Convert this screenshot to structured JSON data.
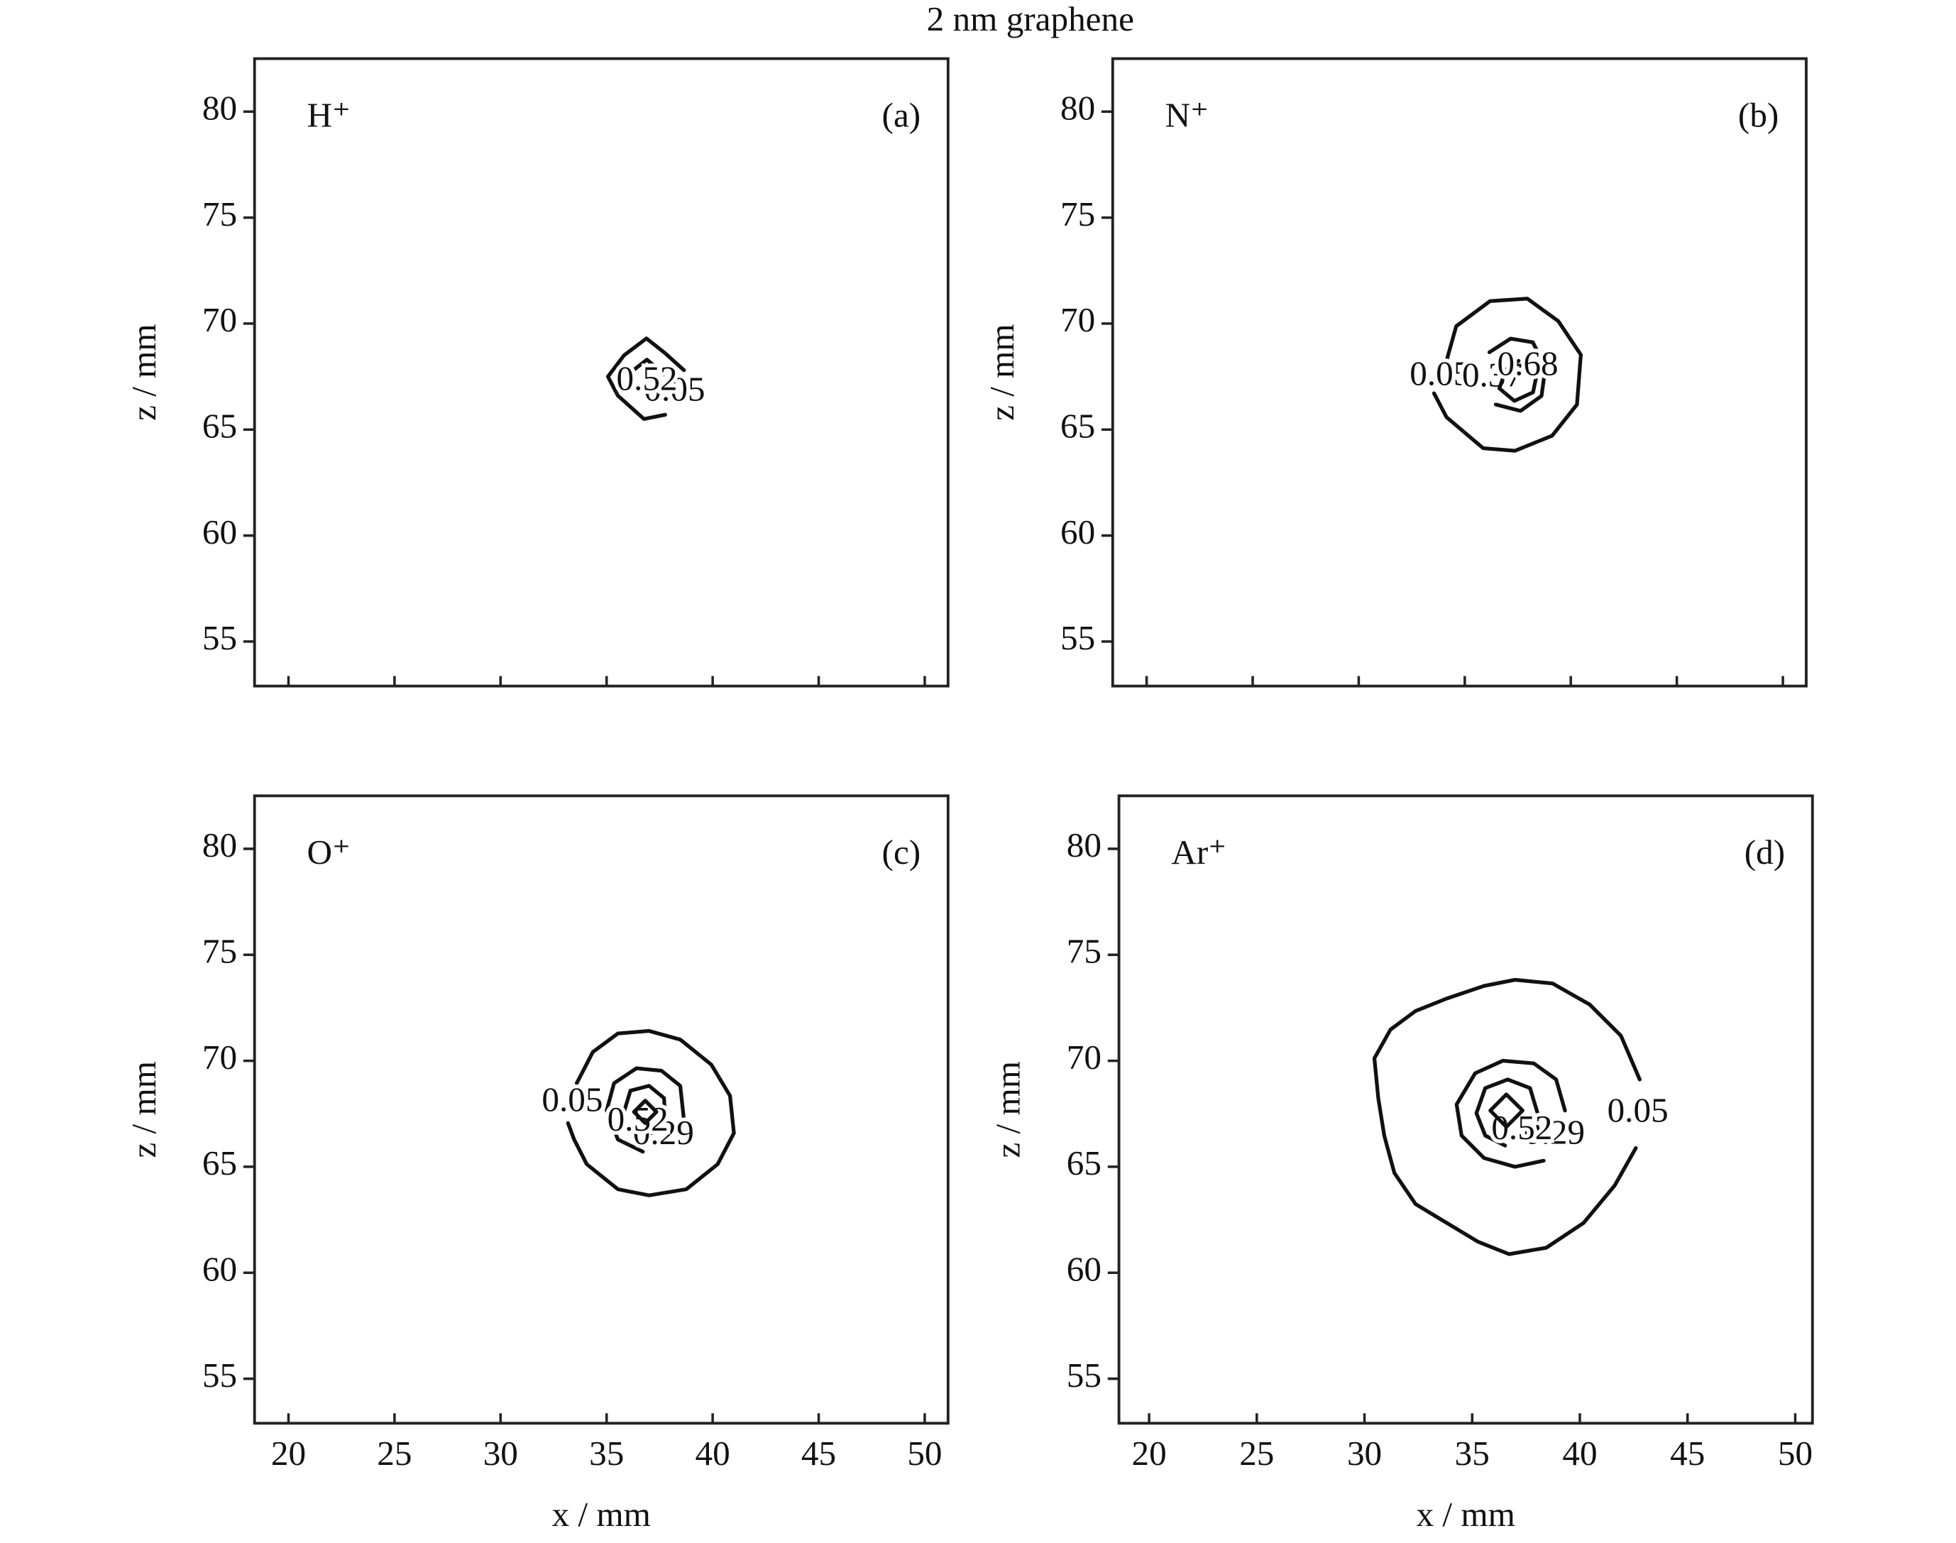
{
  "title": "2 nm graphene",
  "chart_data": [
    {
      "type": "contour",
      "ion": "H⁺",
      "panel": "(a)",
      "ylabel": "z / mm",
      "xlim": [
        18.4,
        51.1
      ],
      "ylim": [
        52.9,
        82.5
      ],
      "xticks": [
        20,
        25,
        30,
        35,
        40,
        45,
        50
      ],
      "yticks": [
        55,
        60,
        65,
        70,
        75,
        80
      ],
      "show_xticklabels": false,
      "contours": [
        {
          "level": 0.05,
          "x": [
            37.76,
            36.76,
            35.53,
            35.06,
            35.82,
            36.88,
            37.76,
            38.65
          ],
          "z": [
            65.7,
            65.5,
            66.6,
            67.5,
            68.5,
            69.3,
            68.6,
            67.8
          ]
        },
        {
          "level": 0.52,
          "x": [
            36.1,
            36.0,
            36.9,
            37.7
          ],
          "z": [
            66.9,
            67.6,
            68.3,
            67.6
          ]
        }
      ]
    },
    {
      "type": "contour",
      "ion": "N⁺",
      "panel": "(b)",
      "ylabel": "z / mm",
      "xlim": [
        18.4,
        51.1
      ],
      "ylim": [
        52.9,
        82.5
      ],
      "xticks": [
        20,
        25,
        30,
        35,
        40,
        45,
        50
      ],
      "yticks": [
        55,
        60,
        65,
        70,
        75,
        80
      ],
      "show_xticklabels": false,
      "contours": [
        {
          "level": 0.05,
          "x": [
            34.14,
            34.6,
            36.19,
            37.95,
            39.41,
            40.47,
            40.29,
            39.12,
            37.36,
            35.87,
            34.14,
            33.55
          ],
          "z": [
            68.24,
            69.88,
            71.06,
            71.18,
            70.12,
            68.53,
            66.18,
            64.71,
            64.0,
            64.12,
            65.59,
            66.71
          ]
        },
        {
          "level": 0.37,
          "x": [
            36.16,
            37.16,
            38.21,
            38.8,
            38.62,
            37.63,
            36.46
          ],
          "z": [
            68.65,
            69.29,
            69.12,
            67.94,
            66.59,
            65.88,
            66.18
          ]
        },
        {
          "level": 0.68,
          "x": [
            37.54,
            36.93,
            36.63,
            37.34,
            38.22,
            38.4
          ],
          "z": [
            68.24,
            67.82,
            66.94,
            66.35,
            66.76,
            67.65
          ]
        }
      ]
    },
    {
      "type": "contour",
      "ion": "O⁺",
      "panel": "(c)",
      "xlabel": "x / mm",
      "ylabel": "z / mm",
      "xlim": [
        18.4,
        51.1
      ],
      "ylim": [
        52.9,
        82.5
      ],
      "xticks": [
        20,
        25,
        30,
        35,
        40,
        45,
        50
      ],
      "yticks": [
        55,
        60,
        65,
        70,
        75,
        80
      ],
      "show_xticklabels": true,
      "contours": [
        {
          "level": 0.05,
          "x": [
            33.59,
            34.35,
            35.53,
            37.0,
            38.47,
            39.94,
            40.82,
            41.0,
            40.24,
            38.76,
            37.0,
            35.53,
            34.06,
            33.47,
            33.18
          ],
          "z": [
            68.94,
            70.41,
            71.29,
            71.41,
            71.0,
            69.82,
            68.35,
            66.59,
            65.12,
            63.94,
            63.65,
            63.94,
            65.12,
            66.29,
            67.06
          ]
        },
        {
          "level": 0.29,
          "x": [
            38.65,
            38.47,
            37.59,
            36.41,
            35.35,
            35.0,
            35.53,
            36.71
          ],
          "z": [
            67.18,
            68.82,
            69.53,
            69.65,
            68.94,
            67.65,
            66.29,
            65.71
          ]
        },
        {
          "level": 0.52,
          "x": [
            35.82,
            36.12,
            37.0,
            37.71,
            37.76,
            37.12
          ],
          "z": [
            67.59,
            68.59,
            68.82,
            68.24,
            67.18,
            66.59
          ]
        },
        {
          "level": null,
          "x": [
            36.29,
            36.82,
            37.35,
            36.82
          ],
          "z": [
            67.59,
            68.12,
            67.59,
            67.06
          ]
        }
      ]
    },
    {
      "type": "contour",
      "ion": "Ar⁺",
      "panel": "(d)",
      "xlabel": "x / mm",
      "ylabel": "z / mm",
      "xlim": [
        18.6,
        50.8
      ],
      "ylim": [
        52.9,
        82.5
      ],
      "xticks": [
        20,
        25,
        30,
        35,
        40,
        45,
        50
      ],
      "yticks": [
        55,
        60,
        65,
        70,
        75,
        80
      ],
      "show_xticklabels": true,
      "contours": [
        {
          "level": 0.05,
          "x": [
            42.6,
            41.62,
            40.17,
            38.44,
            36.71,
            35.26,
            33.82,
            32.37,
            31.39,
            30.92,
            30.64,
            30.46,
            31.21,
            32.37,
            33.82,
            35.55,
            36.99,
            38.73,
            40.46,
            41.91,
            42.78
          ],
          "z": [
            65.88,
            64.12,
            62.35,
            61.18,
            60.88,
            61.47,
            62.35,
            63.24,
            64.71,
            66.47,
            68.24,
            70.12,
            71.47,
            72.35,
            72.94,
            73.53,
            73.82,
            73.65,
            72.65,
            71.18,
            69.12
          ]
        },
        {
          "level": 0.29,
          "x": [
            39.31,
            38.9,
            37.86,
            36.42,
            35.14,
            34.28,
            34.51,
            35.55,
            36.99,
            38.32
          ],
          "z": [
            67.65,
            69.12,
            69.88,
            70.0,
            69.41,
            67.94,
            66.47,
            65.41,
            65.0,
            65.29
          ]
        },
        {
          "level": 0.52,
          "x": [
            38.09,
            37.69,
            36.65,
            35.61,
            35.2,
            35.61,
            36.53
          ],
          "z": [
            67.35,
            68.71,
            69.12,
            68.71,
            67.53,
            66.47,
            66.0
          ]
        },
        {
          "level": null,
          "x": [
            35.84,
            36.59,
            37.34,
            36.59
          ],
          "z": [
            67.65,
            68.41,
            67.65,
            66.88
          ]
        }
      ]
    }
  ]
}
